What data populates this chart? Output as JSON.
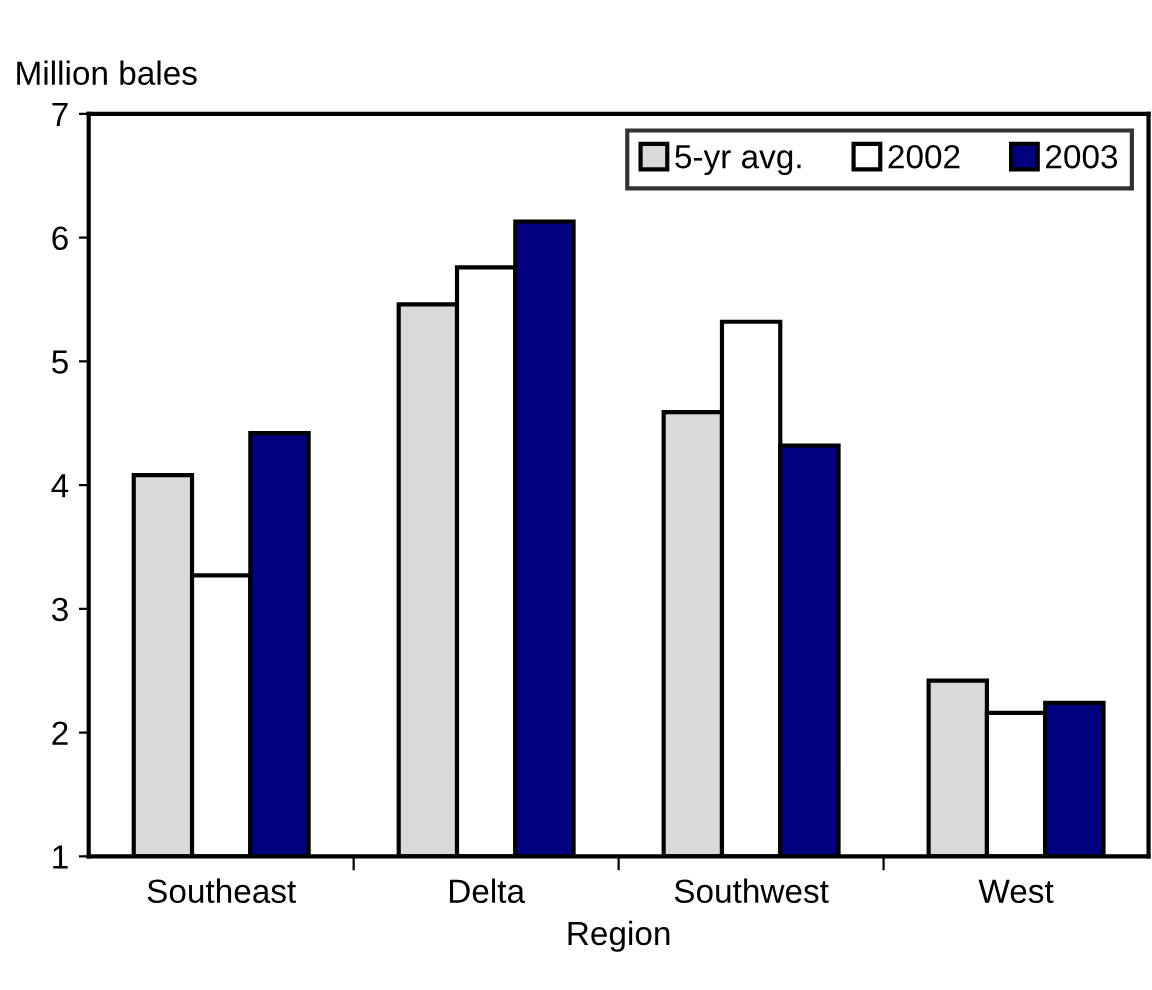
{
  "chart_data": {
    "type": "bar",
    "ylabel": "Million bales",
    "xlabel": "Region",
    "categories": [
      "Southeast",
      "Delta",
      "Southwest",
      "West"
    ],
    "series": [
      {
        "name": "5-yr avg.",
        "color": "#d9d9d9",
        "values": [
          4.08,
          5.46,
          4.59,
          2.42
        ]
      },
      {
        "name": "2002",
        "color": "#ffffff",
        "values": [
          3.27,
          5.76,
          5.32,
          2.16
        ]
      },
      {
        "name": "2003",
        "color": "#000080",
        "values": [
          4.42,
          6.13,
          4.32,
          2.24
        ]
      }
    ],
    "ylim": [
      1,
      7
    ],
    "yticks": [
      1,
      2,
      3,
      4,
      5,
      6,
      7
    ],
    "grid": false,
    "legend": "top right"
  }
}
